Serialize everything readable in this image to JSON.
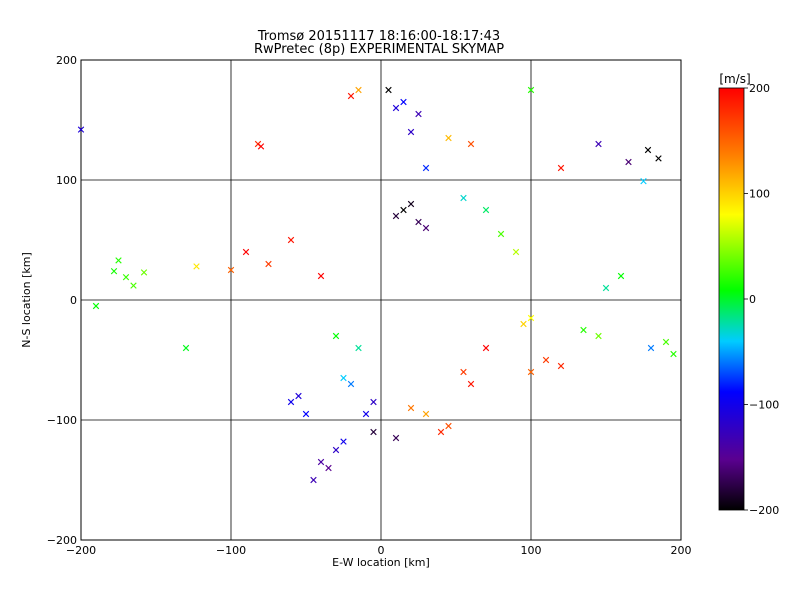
{
  "chart_data": {
    "type": "scatter",
    "title": "Tromsø 20151117 18:16:00-18:17:43",
    "subtitle": "RwPretec (8p) EXPERIMENTAL SKYMAP",
    "xlabel": "E-W location [km]",
    "ylabel": "N-S location [km]",
    "xlim": [
      -200,
      200
    ],
    "ylim": [
      -200,
      200
    ],
    "x_ticks": [
      -200,
      -100,
      0,
      100,
      200
    ],
    "y_ticks": [
      -200,
      -100,
      0,
      100,
      200
    ],
    "x_tick_labels": [
      "−200",
      "−100",
      "0",
      "100",
      "200"
    ],
    "y_tick_labels": [
      "−200",
      "−100",
      "0",
      "100",
      "200"
    ],
    "grid": true,
    "colorbar": {
      "label": "[m/s]",
      "range": [
        -200,
        200
      ],
      "ticks": [
        200,
        100,
        0,
        -100,
        -200
      ],
      "tick_labels": [
        "200",
        "100",
        "0",
        "−100",
        "−200"
      ],
      "colors": [
        "#000000",
        "#5a0090",
        "#0000ff",
        "#00ffff",
        "#00ff00",
        "#ffff00",
        "#ff8000",
        "#ff0000"
      ]
    },
    "series": [
      {
        "marker": "cross",
        "points": [
          [
            -200,
            142,
            -110
          ],
          [
            -175,
            33,
            20
          ],
          [
            -178,
            24,
            15
          ],
          [
            -170,
            19,
            25
          ],
          [
            -165,
            12,
            30
          ],
          [
            -158,
            23,
            40
          ],
          [
            -190,
            -5,
            10
          ],
          [
            -130,
            -40,
            5
          ],
          [
            -123,
            28,
            90
          ],
          [
            -82,
            130,
            180
          ],
          [
            -80,
            128,
            200
          ],
          [
            -40,
            -135,
            -140
          ],
          [
            -35,
            -140,
            -150
          ],
          [
            -45,
            -150,
            -130
          ],
          [
            -30,
            -125,
            -120
          ],
          [
            -25,
            -118,
            -100
          ],
          [
            -50,
            -95,
            -90
          ],
          [
            -55,
            -80,
            -110
          ],
          [
            -60,
            -85,
            -100
          ],
          [
            -5,
            -110,
            -180
          ],
          [
            10,
            -115,
            -170
          ],
          [
            20,
            140,
            -120
          ],
          [
            25,
            155,
            -130
          ],
          [
            15,
            165,
            -90
          ],
          [
            10,
            160,
            -110
          ],
          [
            5,
            175,
            -200
          ],
          [
            -15,
            175,
            120
          ],
          [
            -20,
            170,
            190
          ],
          [
            60,
            130,
            160
          ],
          [
            45,
            135,
            110
          ],
          [
            30,
            110,
            -80
          ],
          [
            100,
            175,
            20
          ],
          [
            120,
            110,
            190
          ],
          [
            145,
            130,
            -130
          ],
          [
            165,
            115,
            -160
          ],
          [
            178,
            125,
            -200
          ],
          [
            185,
            118,
            -210
          ],
          [
            175,
            99,
            -40
          ],
          [
            160,
            20,
            10
          ],
          [
            150,
            10,
            -20
          ],
          [
            145,
            -30,
            40
          ],
          [
            135,
            -25,
            20
          ],
          [
            180,
            -40,
            -60
          ],
          [
            190,
            -35,
            30
          ],
          [
            195,
            -45,
            20
          ],
          [
            120,
            -55,
            180
          ],
          [
            110,
            -50,
            170
          ],
          [
            100,
            -60,
            150
          ],
          [
            70,
            -40,
            200
          ],
          [
            60,
            -70,
            190
          ],
          [
            55,
            -60,
            170
          ],
          [
            45,
            -105,
            160
          ],
          [
            40,
            -110,
            180
          ],
          [
            30,
            -95,
            120
          ],
          [
            20,
            -90,
            140
          ],
          [
            -10,
            -95,
            -100
          ],
          [
            -5,
            -85,
            -120
          ],
          [
            -20,
            -70,
            -60
          ],
          [
            -25,
            -65,
            -40
          ],
          [
            -15,
            -40,
            -20
          ],
          [
            -30,
            -30,
            10
          ],
          [
            -40,
            20,
            200
          ],
          [
            -60,
            50,
            190
          ],
          [
            -75,
            30,
            170
          ],
          [
            -90,
            40,
            200
          ],
          [
            -100,
            25,
            150
          ],
          [
            10,
            70,
            -180
          ],
          [
            15,
            75,
            -200
          ],
          [
            20,
            80,
            -190
          ],
          [
            25,
            65,
            -170
          ],
          [
            30,
            60,
            -160
          ],
          [
            55,
            85,
            -30
          ],
          [
            70,
            75,
            -10
          ],
          [
            80,
            55,
            30
          ],
          [
            90,
            40,
            60
          ],
          [
            100,
            -15,
            80
          ],
          [
            95,
            -20,
            100
          ]
        ]
      }
    ]
  },
  "marker_colors": {
    "cross_stroke": 1.1,
    "dot_stroke": 1
  }
}
